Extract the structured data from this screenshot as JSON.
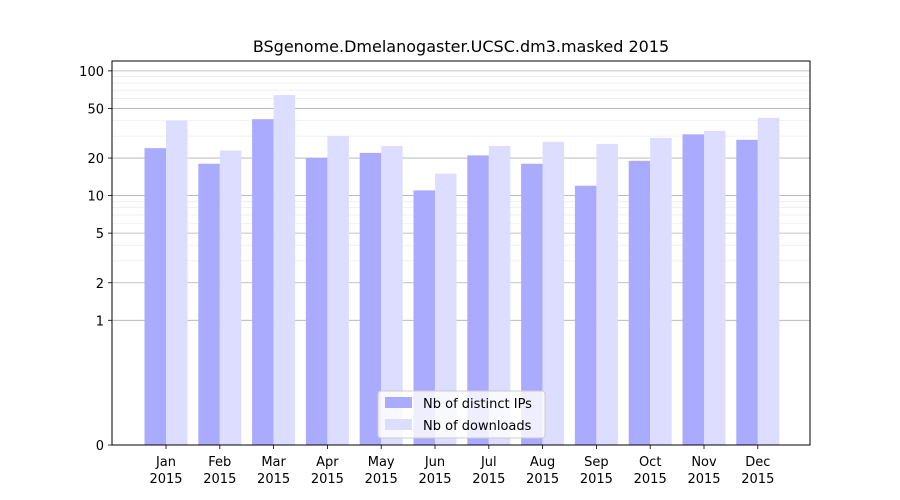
{
  "chart_data": {
    "type": "bar",
    "title": "BSgenome.Dmelanogaster.UCSC.dm3.masked 2015",
    "xlabel": "",
    "ylabel": "",
    "yscale": "symlog",
    "ylim": [
      0,
      120
    ],
    "y_ticks": [
      {
        "value": 0,
        "label": "0"
      },
      {
        "value": 1,
        "label": "1"
      },
      {
        "value": 2,
        "label": "2"
      },
      {
        "value": 5,
        "label": "5"
      },
      {
        "value": 10,
        "label": "10"
      },
      {
        "value": 20,
        "label": "20"
      },
      {
        "value": 50,
        "label": "50"
      },
      {
        "value": 100,
        "label": "100"
      }
    ],
    "grid": true,
    "legend_position": "bottom-center",
    "categories": [
      [
        "Jan",
        "2015"
      ],
      [
        "Feb",
        "2015"
      ],
      [
        "Mar",
        "2015"
      ],
      [
        "Apr",
        "2015"
      ],
      [
        "May",
        "2015"
      ],
      [
        "Jun",
        "2015"
      ],
      [
        "Jul",
        "2015"
      ],
      [
        "Aug",
        "2015"
      ],
      [
        "Sep",
        "2015"
      ],
      [
        "Oct",
        "2015"
      ],
      [
        "Nov",
        "2015"
      ],
      [
        "Dec",
        "2015"
      ]
    ],
    "series": [
      {
        "name": "Nb of distinct IPs",
        "color": "#aaaaff",
        "values": [
          24,
          18,
          41,
          20,
          22,
          11,
          21,
          18,
          12,
          19,
          31,
          28
        ]
      },
      {
        "name": "Nb of downloads",
        "color": "#ddddff",
        "values": [
          40,
          23,
          64,
          30,
          25,
          15,
          25,
          27,
          26,
          29,
          33,
          42
        ]
      }
    ]
  }
}
